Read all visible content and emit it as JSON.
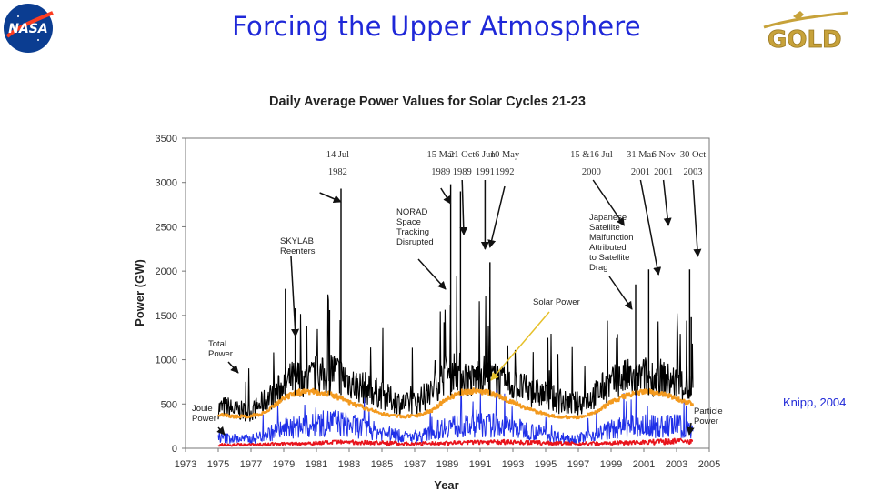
{
  "slide": {
    "title": "Forcing the Upper Atmosphere",
    "credit": "Knipp, 2004",
    "logos": {
      "left": "NASA",
      "right": "GOLD"
    }
  },
  "colors": {
    "title": "#1f28d8",
    "total": "#000000",
    "solar": "#f39a1f",
    "joule": "#1f2fe8",
    "particle": "#e8141c",
    "arrow_solar": "#e6c02a",
    "nasa_blue": "#0b3d91",
    "nasa_red": "#fc3d21",
    "gold": "#c7a23a"
  },
  "chart_data": {
    "type": "line",
    "title": "Daily Average Power Values for Solar Cycles 21-23",
    "xlabel": "Year",
    "ylabel": "Power (GW)",
    "xlim": [
      1973,
      2005
    ],
    "ylim": [
      0,
      3500
    ],
    "x_ticks": [
      1973,
      1975,
      1977,
      1979,
      1981,
      1983,
      1985,
      1987,
      1989,
      1991,
      1993,
      1995,
      1997,
      1999,
      2001,
      2003,
      2005
    ],
    "y_ticks": [
      0,
      500,
      1000,
      1500,
      2000,
      2500,
      3000,
      3500
    ],
    "grid": false,
    "series": [
      {
        "name": "Total Power",
        "key": "total",
        "x": [
          1975.0,
          1975.5,
          1976.0,
          1976.5,
          1977.0,
          1977.5,
          1978.0,
          1978.5,
          1979.0,
          1979.5,
          1980.0,
          1980.5,
          1981.0,
          1981.5,
          1982.0,
          1982.5,
          1983.0,
          1983.5,
          1984.0,
          1984.5,
          1985.0,
          1985.5,
          1986.0,
          1986.5,
          1987.0,
          1987.5,
          1988.0,
          1988.5,
          1989.0,
          1989.5,
          1990.0,
          1990.5,
          1991.0,
          1991.5,
          1992.0,
          1992.5,
          1993.0,
          1993.5,
          1994.0,
          1994.5,
          1995.0,
          1995.5,
          1996.0,
          1996.5,
          1997.0,
          1997.5,
          1998.0,
          1998.5,
          1999.0,
          1999.5,
          2000.0,
          2000.5,
          2001.0,
          2001.5,
          2002.0,
          2002.5,
          2003.0,
          2003.5,
          2004.0
        ],
        "y": [
          450,
          470,
          430,
          420,
          410,
          480,
          560,
          620,
          720,
          780,
          800,
          760,
          840,
          800,
          880,
          820,
          760,
          700,
          680,
          640,
          600,
          560,
          520,
          500,
          510,
          560,
          620,
          760,
          850,
          900,
          820,
          760,
          860,
          820,
          760,
          700,
          720,
          680,
          640,
          620,
          600,
          560,
          520,
          500,
          510,
          540,
          600,
          680,
          720,
          780,
          800,
          760,
          820,
          800,
          800,
          760,
          740,
          700,
          650
        ]
      },
      {
        "name": "Solar Power",
        "key": "solar",
        "x": [
          1975.0,
          1976.0,
          1977.0,
          1978.0,
          1979.0,
          1980.0,
          1981.0,
          1982.0,
          1983.0,
          1984.0,
          1985.0,
          1986.0,
          1987.0,
          1988.0,
          1989.0,
          1990.0,
          1991.0,
          1992.0,
          1993.0,
          1994.0,
          1995.0,
          1996.0,
          1997.0,
          1998.0,
          1999.0,
          2000.0,
          2001.0,
          2002.0,
          2003.0,
          2004.0
        ],
        "y": [
          380,
          360,
          360,
          420,
          560,
          640,
          640,
          600,
          520,
          450,
          390,
          360,
          360,
          420,
          560,
          640,
          650,
          600,
          520,
          440,
          380,
          350,
          350,
          400,
          520,
          600,
          640,
          620,
          560,
          500
        ]
      },
      {
        "name": "Joule Power",
        "key": "joule",
        "x": [
          1975.0,
          1976.0,
          1977.0,
          1978.0,
          1979.0,
          1980.0,
          1981.0,
          1982.0,
          1983.0,
          1984.0,
          1985.0,
          1986.0,
          1987.0,
          1988.0,
          1989.0,
          1990.0,
          1991.0,
          1992.0,
          1993.0,
          1994.0,
          1995.0,
          1996.0,
          1997.0,
          1998.0,
          1999.0,
          2000.0,
          2001.0,
          2002.0,
          2003.0,
          2004.0
        ],
        "y": [
          120,
          110,
          100,
          160,
          220,
          240,
          260,
          300,
          260,
          220,
          180,
          140,
          120,
          170,
          260,
          240,
          260,
          260,
          230,
          200,
          160,
          120,
          110,
          160,
          210,
          240,
          250,
          240,
          260,
          200
        ]
      },
      {
        "name": "Particle Power",
        "key": "particle",
        "x": [
          1975.0,
          1977.0,
          1979.0,
          1981.0,
          1983.0,
          1985.0,
          1987.0,
          1989.0,
          1991.0,
          1993.0,
          1995.0,
          1997.0,
          1999.0,
          2001.0,
          2003.0,
          2004.0
        ],
        "y": [
          40,
          40,
          50,
          60,
          70,
          60,
          50,
          60,
          70,
          70,
          60,
          50,
          60,
          70,
          80,
          70
        ]
      }
    ],
    "peaks": [
      {
        "x": 1982.5,
        "y": 2930
      },
      {
        "x": 1989.2,
        "y": 2980
      },
      {
        "x": 1989.8,
        "y": 2900
      },
      {
        "x": 1991.6,
        "y": 2100
      },
      {
        "x": 2000.5,
        "y": 1850
      },
      {
        "x": 2001.3,
        "y": 2020
      },
      {
        "x": 2003.8,
        "y": 2020
      },
      {
        "x": 1979.1,
        "y": 1800
      },
      {
        "x": 1979.7,
        "y": 1580
      },
      {
        "x": 1981.8,
        "y": 1560
      },
      {
        "x": 2003.9,
        "y": 1480
      }
    ],
    "event_labels": [
      {
        "date": "14 Jul",
        "year": "1982",
        "x": 1982.3
      },
      {
        "date": "15 Mar",
        "year": "1989",
        "x": 1988.6
      },
      {
        "date": "21 Oct",
        "year": "1989",
        "x": 1989.9
      },
      {
        "date": "6 Jun",
        "year": "1991",
        "x": 1991.3
      },
      {
        "date": "10 May",
        "year": "1992",
        "x": 1992.5
      },
      {
        "date": "15 &16 Jul",
        "year": "2000",
        "x": 1997.8
      },
      {
        "date": "31 Mar",
        "year": "2001",
        "x": 2000.8
      },
      {
        "date": "6 Nov",
        "year": "2001",
        "x": 2002.2
      },
      {
        "date": "30 Oct",
        "year": "2003",
        "x": 2004.0
      }
    ],
    "annotations": [
      {
        "key": "skylab",
        "text": [
          "SKYLAB",
          "Reenters"
        ]
      },
      {
        "key": "norad",
        "text": [
          "NORAD",
          "Space",
          "Tracking",
          "Disrupted"
        ]
      },
      {
        "key": "japanese",
        "text": [
          "Japanese",
          "Satellite",
          "Malfunction",
          "Attributed",
          "to Satellite",
          "Drag"
        ]
      },
      {
        "key": "solar_power",
        "text": [
          "Solar Power"
        ]
      },
      {
        "key": "total_power",
        "text": [
          "Total",
          "Power"
        ]
      },
      {
        "key": "joule_power",
        "text": [
          "Joule",
          "Power"
        ]
      },
      {
        "key": "particle_power",
        "text": [
          "Particle",
          "Power"
        ]
      }
    ]
  }
}
